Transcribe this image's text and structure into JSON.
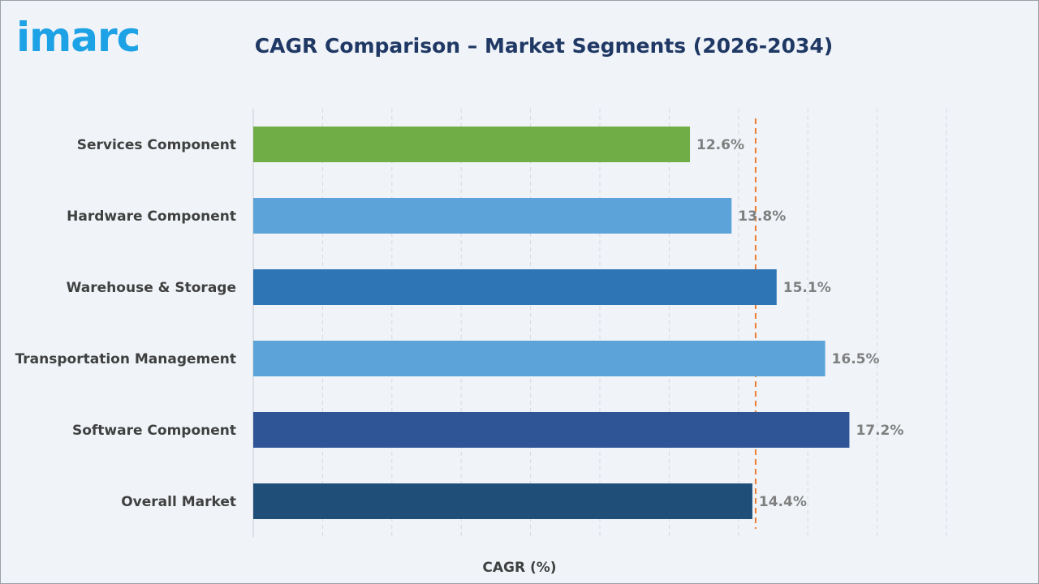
{
  "logo": {
    "text": "imarc",
    "color": "#1ea2e6"
  },
  "chart_data": {
    "type": "bar",
    "orientation": "horizontal",
    "title": "CAGR Comparison – Market Segments (2026-2034)",
    "xlabel": "CAGR (%)",
    "ylabel": "",
    "xlim": [
      0,
      20
    ],
    "grid": true,
    "categories": [
      "Services Component",
      "Hardware Component",
      "Warehouse & Storage",
      "Transportation Management",
      "Software Component",
      "Overall Market"
    ],
    "values": [
      12.6,
      13.8,
      15.1,
      16.5,
      17.2,
      14.4
    ],
    "value_labels": [
      "12.6%",
      "13.8%",
      "15.1%",
      "16.5%",
      "17.2%",
      "14.4%"
    ],
    "bar_colors": [
      "#70ad47",
      "#5ba3d9",
      "#2e75b6",
      "#5ba3d9",
      "#2f5597",
      "#1f4e79"
    ],
    "reference_line": {
      "value": 14.4,
      "style": "dashed",
      "color": "#ed7d31"
    }
  }
}
